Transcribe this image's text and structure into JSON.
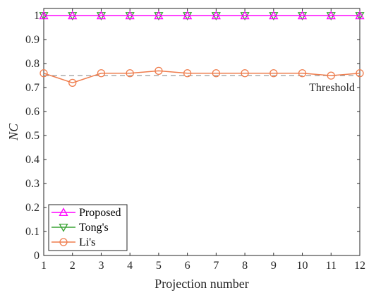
{
  "chart_data": {
    "type": "line",
    "xlabel": "Projection number",
    "ylabel": "NC",
    "x": [
      1,
      2,
      3,
      4,
      5,
      6,
      7,
      8,
      9,
      10,
      11,
      12
    ],
    "xlim": [
      1,
      12
    ],
    "ylim": [
      0,
      1.03
    ],
    "xticks": [
      "1",
      "2",
      "3",
      "4",
      "5",
      "6",
      "7",
      "8",
      "9",
      "10",
      "11",
      "12"
    ],
    "yticks": [
      "0",
      "0.1",
      "0.2",
      "0.3",
      "0.4",
      "0.5",
      "0.6",
      "0.7",
      "0.8",
      "0.9",
      "1"
    ],
    "grid": false,
    "legend_position": "bottom-left",
    "series": [
      {
        "name": "Proposed",
        "marker": "triangle-up",
        "color": "#ff00ff",
        "values": [
          1,
          1,
          1,
          1,
          1,
          1,
          1,
          1,
          1,
          1,
          1,
          1
        ]
      },
      {
        "name": "Tong's",
        "marker": "triangle-down",
        "color": "#3aa335",
        "values": [
          1,
          1,
          1,
          1,
          1,
          1,
          1,
          1,
          1,
          1,
          1,
          1
        ]
      },
      {
        "name": "Li's",
        "marker": "circle",
        "color": "#ef7d4d",
        "values": [
          0.76,
          0.72,
          0.76,
          0.76,
          0.77,
          0.76,
          0.76,
          0.76,
          0.76,
          0.76,
          0.75,
          0.76
        ]
      }
    ],
    "threshold": {
      "label": "Threshold",
      "value": 0.75,
      "color": "#808080"
    }
  }
}
